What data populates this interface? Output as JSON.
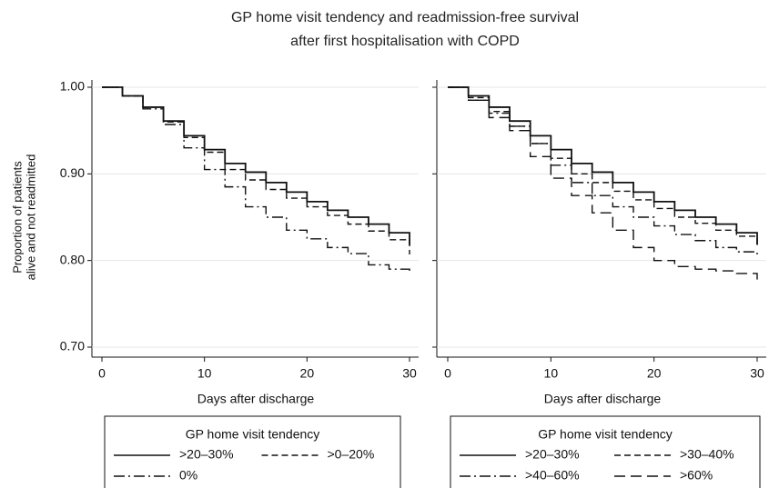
{
  "title": [
    "GP home visit tendency and readmission-free survival",
    "after first hospitalisation with COPD"
  ],
  "chart_data": [
    {
      "type": "line",
      "y_label": [
        "Proportion of patients",
        "alive and not readmitted"
      ],
      "x_label": "Days after discharge",
      "x": [
        0,
        2,
        4,
        6,
        8,
        10,
        12,
        14,
        16,
        18,
        20,
        22,
        24,
        26,
        28,
        30
      ],
      "xlim": [
        0,
        30
      ],
      "xticks": [
        0,
        10,
        20,
        30
      ],
      "ylim": [
        0.7,
        1.0
      ],
      "yticks": [
        {
          "value": 0.7,
          "label": "0.70"
        },
        {
          "value": 0.8,
          "label": "0.80"
        },
        {
          "value": 0.9,
          "label": "0.90"
        },
        {
          "value": 1.0,
          "label": "1.00"
        }
      ],
      "grid": true,
      "legend_title": "GP home visit tendency",
      "series": [
        {
          "name": ">20–30%",
          "color": "#111111",
          "dash": "solid",
          "values": [
            1.0,
            0.99,
            0.977,
            0.961,
            0.944,
            0.928,
            0.912,
            0.902,
            0.89,
            0.879,
            0.868,
            0.858,
            0.85,
            0.842,
            0.832,
            0.818
          ]
        },
        {
          "name": ">0–20%",
          "color": "#111111",
          "dash": "dash",
          "values": [
            1.0,
            0.99,
            0.977,
            0.96,
            0.942,
            0.925,
            0.905,
            0.893,
            0.882,
            0.872,
            0.862,
            0.852,
            0.842,
            0.834,
            0.824,
            0.807
          ]
        },
        {
          "name": "0%",
          "color": "#111111",
          "dash": "dashdot",
          "values": [
            1.0,
            0.99,
            0.975,
            0.957,
            0.93,
            0.905,
            0.885,
            0.862,
            0.85,
            0.835,
            0.825,
            0.815,
            0.808,
            0.795,
            0.79,
            0.788
          ]
        }
      ]
    },
    {
      "type": "line",
      "x_label": "Days after discharge",
      "x": [
        0,
        2,
        4,
        6,
        8,
        10,
        12,
        14,
        16,
        18,
        20,
        22,
        24,
        26,
        28,
        30
      ],
      "xlim": [
        0,
        30
      ],
      "xticks": [
        0,
        10,
        20,
        30
      ],
      "ylim": [
        0.7,
        1.0
      ],
      "yticks": [
        0.7,
        0.8,
        0.9,
        1
      ],
      "grid": true,
      "legend_title": "GP home visit tendency",
      "series": [
        {
          "name": ">20–30%",
          "color": "#111111",
          "dash": "solid",
          "values": [
            1.0,
            0.99,
            0.977,
            0.961,
            0.944,
            0.928,
            0.912,
            0.902,
            0.89,
            0.879,
            0.868,
            0.858,
            0.85,
            0.842,
            0.832,
            0.818
          ]
        },
        {
          "name": ">30–40%",
          "color": "#111111",
          "dash": "dash",
          "values": [
            1.0,
            0.988,
            0.972,
            0.955,
            0.935,
            0.918,
            0.9,
            0.89,
            0.88,
            0.87,
            0.86,
            0.85,
            0.843,
            0.835,
            0.828,
            0.815
          ]
        },
        {
          "name": ">40–60%",
          "color": "#111111",
          "dash": "dashdot",
          "values": [
            1.0,
            0.985,
            0.97,
            0.955,
            0.935,
            0.91,
            0.89,
            0.875,
            0.862,
            0.85,
            0.84,
            0.83,
            0.823,
            0.815,
            0.81,
            0.803
          ]
        },
        {
          "name": ">60%",
          "color": "#111111",
          "dash": "longdash",
          "values": [
            1.0,
            0.985,
            0.965,
            0.95,
            0.92,
            0.895,
            0.875,
            0.855,
            0.835,
            0.815,
            0.8,
            0.793,
            0.79,
            0.788,
            0.785,
            0.778
          ]
        }
      ]
    }
  ]
}
